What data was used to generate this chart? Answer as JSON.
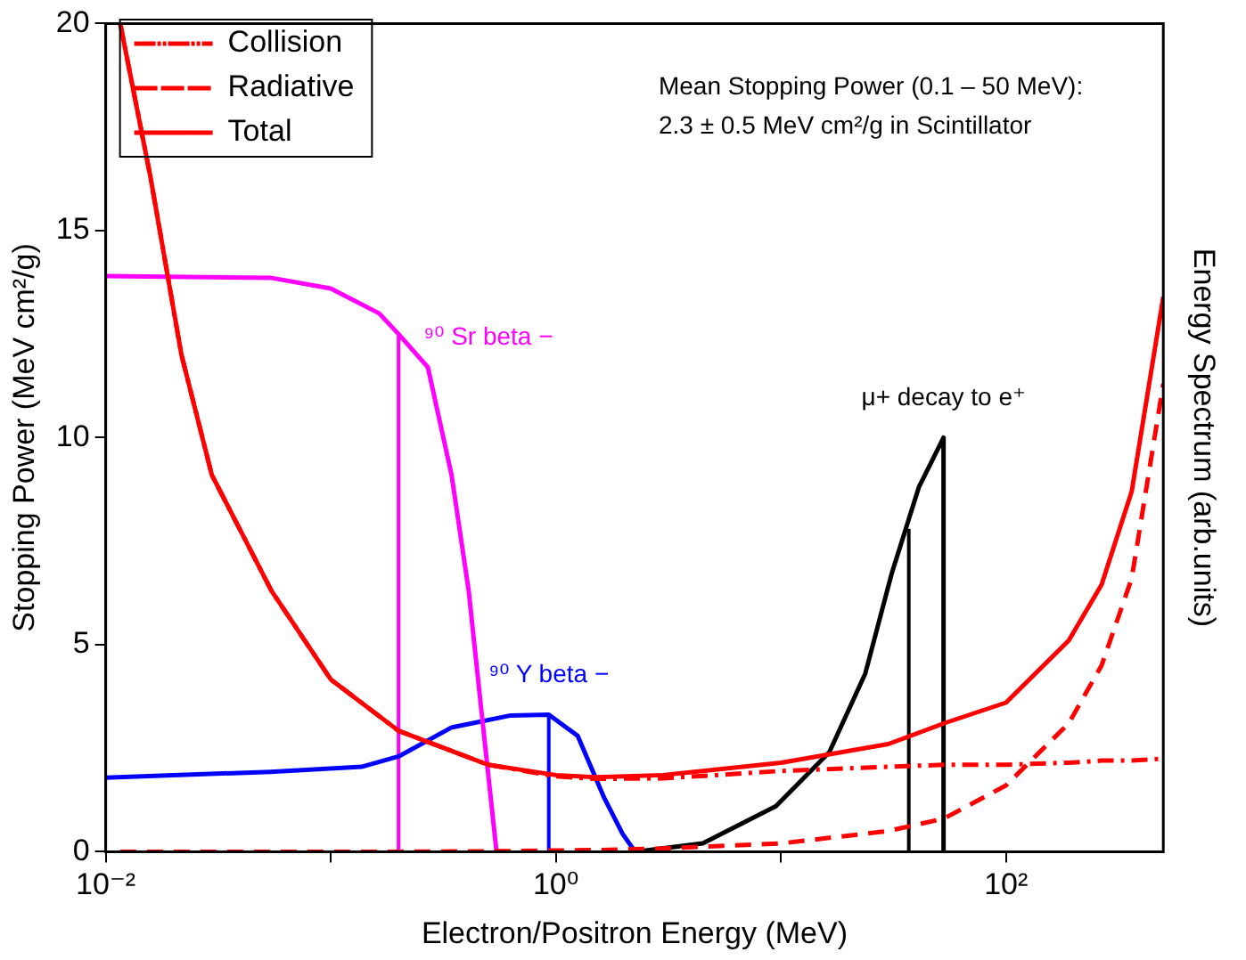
{
  "chart_data": {
    "type": "line",
    "xlabel": "Electron/Positron Energy (MeV)",
    "ylabel": "Stopping Power (MeV cm²/g)",
    "y2label": "Energy Spectrum (arb.units)",
    "log": "x",
    "xlim": [
      0.01,
      500
    ],
    "xticks": [
      {
        "value": 0.01,
        "label": "10⁻²"
      },
      {
        "value": 0.1,
        "label": null
      },
      {
        "value": 1,
        "label": "10⁰"
      },
      {
        "value": 10,
        "label": null
      },
      {
        "value": 100,
        "label": "10²"
      }
    ],
    "ylim": [
      0,
      20
    ],
    "yticks": [
      0,
      5,
      10,
      15,
      20
    ],
    "grid": false,
    "legend": "top left",
    "marker": "none",
    "x": [
      0.0116,
      0.0158,
      0.0217,
      0.0296,
      0.0545,
      0.1,
      0.2,
      0.5,
      1,
      1.5,
      3,
      10,
      30,
      53,
      100,
      190,
      266,
      362,
      500
    ],
    "series": [
      {
        "name": "Collision",
        "color": "#ff0000",
        "line_style": "dashdot",
        "values": [
          20,
          16.3,
          12,
          9.1,
          6.3,
          4.16,
          2.92,
          2.1,
          1.82,
          1.76,
          1.77,
          1.95,
          2.05,
          2.1,
          2.1,
          2.15,
          2.2,
          2.2,
          2.25
        ]
      },
      {
        "name": "Radiative",
        "color": "#ff0000",
        "line_style": "dashed",
        "values": [
          0,
          0,
          0,
          0,
          0,
          0,
          0,
          0.01,
          0.03,
          0.04,
          0.08,
          0.2,
          0.5,
          0.8,
          1.6,
          3.1,
          4.5,
          6.6,
          11.3
        ]
      },
      {
        "name": "Total",
        "color": "#ff0000",
        "line_style": "solid",
        "values": [
          20,
          16.3,
          12,
          9.1,
          6.3,
          4.16,
          2.92,
          2.1,
          1.85,
          1.8,
          1.85,
          2.15,
          2.6,
          3.1,
          3.6,
          5.1,
          6.45,
          8.7,
          13.4
        ]
      },
      {
        "name": "⁹⁰ Sr beta −",
        "color": "#ff00ff",
        "x": [
          0.01,
          0.054,
          0.1,
          0.164,
          0.2,
          0.27,
          0.344,
          0.41,
          0.467,
          0.545
        ],
        "values": [
          13.9,
          13.86,
          13.6,
          13.0,
          12.5,
          11.7,
          9.1,
          6.3,
          3.4,
          0
        ]
      },
      {
        "name": "⁹⁰ Y beta −",
        "color": "#0000ff",
        "x": [
          0.01,
          0.054,
          0.137,
          0.2,
          0.344,
          0.63,
          0.93,
          1.25,
          1.64,
          1.98,
          2.25
        ],
        "values": [
          1.79,
          1.93,
          2.05,
          2.3,
          3.0,
          3.29,
          3.31,
          2.8,
          1.3,
          0.43,
          0
        ]
      },
      {
        "name": "μ+ decay to e⁺",
        "color": "#000000",
        "x": [
          2.25,
          4.5,
          9.5,
          16.4,
          23.7,
          31,
          41,
          52.8,
          52.8
        ],
        "values": [
          0,
          0.2,
          1.1,
          2.4,
          4.3,
          6.7,
          8.8,
          10,
          0
        ]
      },
      {
        "color": "#ff00ff",
        "x": [
          0.2,
          0.2
        ],
        "values": [
          0,
          12.5
        ]
      },
      {
        "color": "#0000ff",
        "x": [
          0.93,
          0.93
        ],
        "values": [
          0,
          3.3
        ]
      },
      {
        "color": "#000000",
        "x": [
          37,
          37
        ],
        "values": [
          0,
          7.8
        ]
      }
    ],
    "annotations": [
      "Mean Stopping Power (0.1 – 50 MeV):",
      "2.3 ± 0.5 MeV cm²/g in Scintillator"
    ]
  }
}
